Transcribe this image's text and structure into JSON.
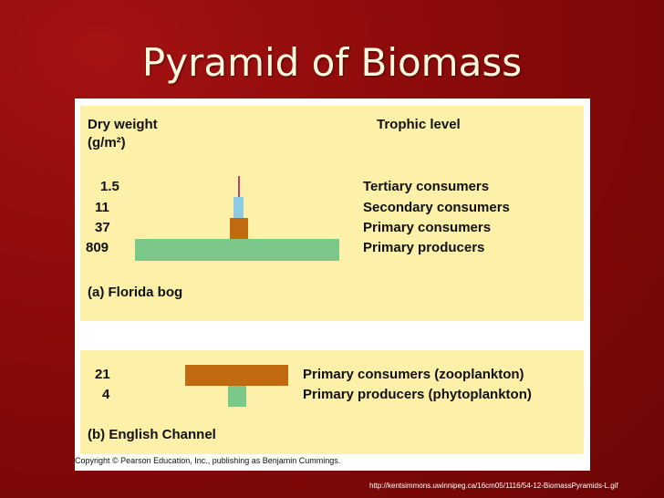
{
  "slide": {
    "title": "Pyramid of Biomass"
  },
  "colors": {
    "producer_green": "#7bc88a",
    "consumer_brown": "#c16a10",
    "secondary_blue": "#8ccbe8",
    "tertiary_line": "#c04070",
    "panel_bg": "#fdf0a8"
  },
  "panel_a": {
    "col_header_weight": "Dry weight",
    "col_header_units": "(g/m²)",
    "col_header_trophic": "Trophic level",
    "caption_letter": "(a)",
    "caption_name": "Florida bog",
    "levels": [
      {
        "value": "1.5",
        "label": "Tertiary consumers"
      },
      {
        "value": "11",
        "label": "Secondary consumers"
      },
      {
        "value": "37",
        "label": "Primary consumers"
      },
      {
        "value": "809",
        "label": "Primary producers"
      }
    ]
  },
  "panel_b": {
    "caption_letter": "(b)",
    "caption_name": "English Channel",
    "levels": [
      {
        "value": "21",
        "label": "Primary consumers (zooplankton)"
      },
      {
        "value": "4",
        "label": "Primary producers (phytoplankton)"
      }
    ]
  },
  "copyright": "Copyright © Pearson Education, Inc., publishing as Benjamin Cummings.",
  "source_url": "http://kentsimmons.uwinnipeg.ca/16cm05/1116/54-12-BiomassPyramids-L.gif"
}
